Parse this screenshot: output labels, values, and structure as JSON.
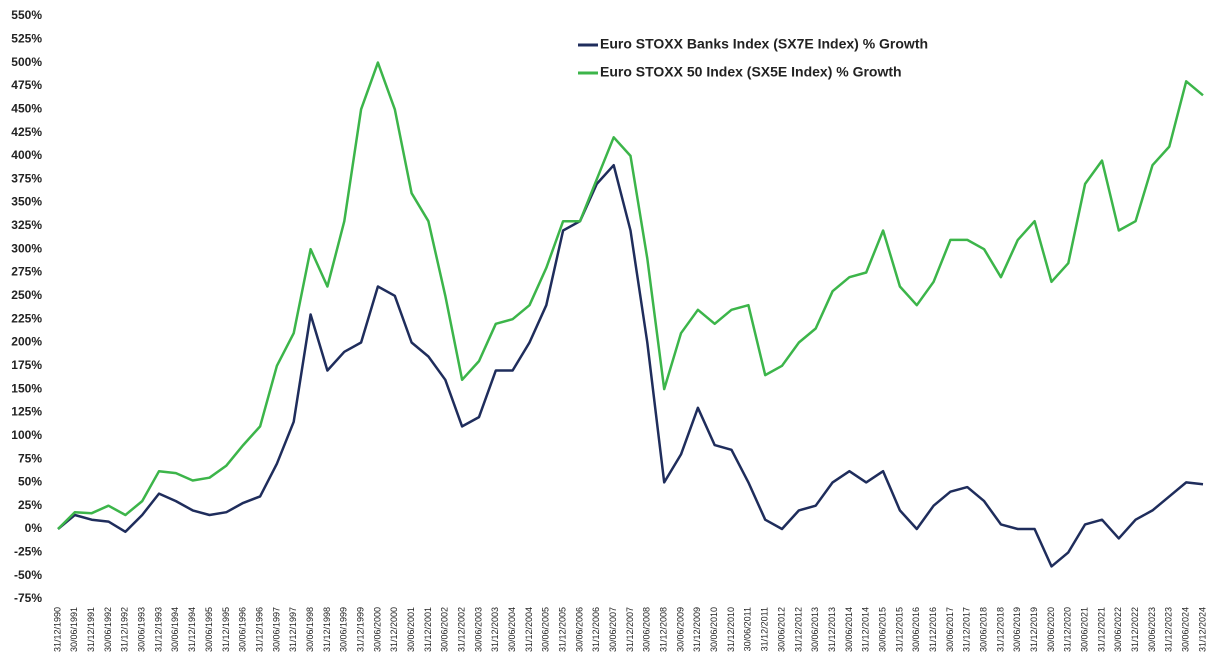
{
  "chart_data": {
    "type": "line",
    "x": [
      "31/12/1990",
      "30/06/1991",
      "31/12/1991",
      "30/06/1992",
      "31/12/1992",
      "30/06/1993",
      "31/12/1993",
      "30/06/1994",
      "31/12/1994",
      "30/06/1995",
      "31/12/1995",
      "30/06/1996",
      "31/12/1996",
      "30/06/1997",
      "31/12/1997",
      "30/06/1998",
      "31/12/1998",
      "30/06/1999",
      "31/12/1999",
      "30/06/2000",
      "31/12/2000",
      "30/06/2001",
      "31/12/2001",
      "30/06/2002",
      "31/12/2002",
      "30/06/2003",
      "31/12/2003",
      "30/06/2004",
      "31/12/2004",
      "30/06/2005",
      "31/12/2005",
      "30/06/2006",
      "31/12/2006",
      "30/06/2007",
      "31/12/2007",
      "30/06/2008",
      "31/12/2008",
      "30/06/2009",
      "31/12/2009",
      "30/06/2010",
      "31/12/2010",
      "30/06/2011",
      "31/12/2011",
      "30/06/2012",
      "31/12/2012",
      "30/06/2013",
      "31/12/2013",
      "30/06/2014",
      "31/12/2014",
      "30/06/2015",
      "31/12/2015",
      "30/06/2016",
      "31/12/2016",
      "30/06/2017",
      "31/12/2017",
      "30/06/2018",
      "31/12/2018",
      "30/06/2019",
      "31/12/2019",
      "30/06/2020",
      "31/12/2020",
      "30/06/2021",
      "31/12/2021",
      "30/06/2022",
      "31/12/2022",
      "30/06/2023",
      "31/12/2023",
      "30/06/2024",
      "31/12/2024"
    ],
    "series": [
      {
        "name": "Euro STOXX Banks Index (SX7E Index) % Growth",
        "color": "#1f2d5c",
        "values": [
          0,
          15,
          10,
          8,
          -3,
          15,
          38,
          30,
          20,
          15,
          18,
          28,
          35,
          70,
          115,
          230,
          170,
          190,
          200,
          260,
          250,
          200,
          185,
          160,
          110,
          120,
          170,
          170,
          200,
          240,
          320,
          330,
          370,
          390,
          320,
          200,
          50,
          80,
          130,
          90,
          85,
          50,
          10,
          0,
          20,
          25,
          50,
          62,
          50,
          62,
          20,
          0,
          25,
          40,
          45,
          30,
          5,
          0,
          0,
          -40,
          -25,
          5,
          10,
          -10,
          10,
          20,
          35,
          50,
          48
        ]
      },
      {
        "name": "Euro STOXX 50 Index (SX5E Index) % Growth",
        "color": "#3cb54a",
        "values": [
          0,
          18,
          17,
          25,
          15,
          30,
          62,
          60,
          52,
          55,
          68,
          90,
          110,
          175,
          210,
          300,
          260,
          330,
          450,
          500,
          450,
          360,
          330,
          250,
          160,
          180,
          220,
          225,
          240,
          280,
          330,
          330,
          375,
          420,
          400,
          290,
          150,
          210,
          235,
          220,
          235,
          240,
          165,
          175,
          200,
          215,
          255,
          270,
          275,
          320,
          260,
          240,
          265,
          310,
          310,
          300,
          270,
          310,
          330,
          265,
          285,
          370,
          395,
          320,
          330,
          390,
          410,
          480,
          465
        ]
      }
    ],
    "ylim": [
      -75,
      550
    ],
    "yticks": [
      {
        "value": -75,
        "label": "-75%"
      },
      {
        "value": -50,
        "label": "-50%"
      },
      {
        "value": -25,
        "label": "-25%"
      },
      {
        "value": 0,
        "label": "0%"
      },
      {
        "value": 25,
        "label": "25%"
      },
      {
        "value": 50,
        "label": "50%"
      },
      {
        "value": 75,
        "label": "75%"
      },
      {
        "value": 100,
        "label": "100%"
      },
      {
        "value": 125,
        "label": "125%"
      },
      {
        "value": 150,
        "label": "150%"
      },
      {
        "value": 175,
        "label": "175%"
      },
      {
        "value": 200,
        "label": "200%"
      },
      {
        "value": 225,
        "label": "225%"
      },
      {
        "value": 250,
        "label": "250%"
      },
      {
        "value": 275,
        "label": "275%"
      },
      {
        "value": 300,
        "label": "300%"
      },
      {
        "value": 325,
        "label": "325%"
      },
      {
        "value": 350,
        "label": "350%"
      },
      {
        "value": 375,
        "label": "375%"
      },
      {
        "value": 400,
        "label": "400%"
      },
      {
        "value": 425,
        "label": "425%"
      },
      {
        "value": 450,
        "label": "450%"
      },
      {
        "value": 475,
        "label": "475%"
      },
      {
        "value": 500,
        "label": "500%"
      },
      {
        "value": 525,
        "label": "525%"
      },
      {
        "value": 550,
        "label": "550%"
      }
    ],
    "grid": false
  }
}
